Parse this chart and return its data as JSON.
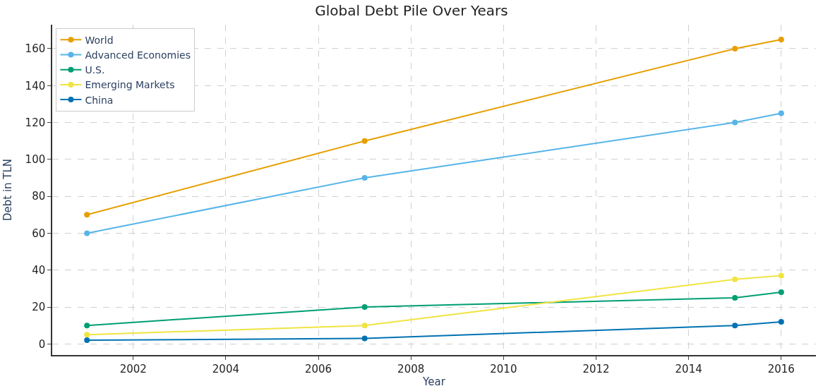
{
  "chart_data": {
    "type": "line",
    "title": "Global Debt Pile Over Years",
    "xlabel": "Year",
    "ylabel": "Debt in TLN",
    "x": [
      2001,
      2007,
      2015,
      2016
    ],
    "series": [
      {
        "name": "World",
        "color": "#e69f00",
        "values": [
          70,
          110,
          160,
          165
        ]
      },
      {
        "name": "Advanced Economies",
        "color": "#56b4e9",
        "values": [
          60,
          90,
          120,
          125
        ]
      },
      {
        "name": "U.S.",
        "color": "#009e73",
        "values": [
          10,
          20,
          25,
          28
        ]
      },
      {
        "name": "Emerging Markets",
        "color": "#f0e442",
        "values": [
          5,
          10,
          35,
          37
        ]
      },
      {
        "name": "China",
        "color": "#0072b2",
        "values": [
          2,
          3,
          10,
          12
        ]
      }
    ],
    "xlim": [
      2000.25,
      2016.75
    ],
    "xticks": [
      2002,
      2004,
      2006,
      2008,
      2010,
      2012,
      2014,
      2016
    ],
    "ylim": [
      -6,
      173
    ],
    "yticks": [
      0,
      20,
      40,
      60,
      80,
      100,
      120,
      140,
      160
    ],
    "grid": true,
    "legend": "top left",
    "marker": "circle",
    "line_style": "solid"
  }
}
